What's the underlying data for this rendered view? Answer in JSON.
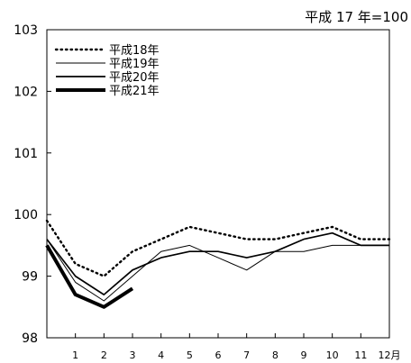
{
  "chart_data": {
    "type": "line",
    "title": "平成 17 年=100",
    "x": [
      0,
      1,
      2,
      3,
      4,
      5,
      6,
      7,
      8,
      9,
      10,
      11,
      12
    ],
    "xticks": [
      {
        "x": 1,
        "label": "1"
      },
      {
        "x": 2,
        "label": "2"
      },
      {
        "x": 3,
        "label": "3"
      },
      {
        "x": 4,
        "label": "4"
      },
      {
        "x": 5,
        "label": "5"
      },
      {
        "x": 6,
        "label": "6"
      },
      {
        "x": 7,
        "label": "7"
      },
      {
        "x": 8,
        "label": "8"
      },
      {
        "x": 9,
        "label": "9"
      },
      {
        "x": 10,
        "label": "10"
      },
      {
        "x": 11,
        "label": "11"
      },
      {
        "x": 12,
        "label": "12月"
      }
    ],
    "xlim": [
      0,
      12
    ],
    "ylim": [
      98,
      103
    ],
    "yticks": [
      {
        "y": 98,
        "label": "98"
      },
      {
        "y": 99,
        "label": "99"
      },
      {
        "y": 100,
        "label": "100"
      },
      {
        "y": 101,
        "label": "101"
      },
      {
        "y": 102,
        "label": "102"
      },
      {
        "y": 103,
        "label": "103"
      }
    ],
    "grid": false,
    "legend_position": "top-left",
    "series": [
      {
        "name": "平成18年",
        "style": "dotted",
        "color": "#000000",
        "points": [
          [
            0,
            99.9
          ],
          [
            1,
            99.2
          ],
          [
            2,
            99.0
          ],
          [
            3,
            99.4
          ],
          [
            4,
            99.6
          ],
          [
            5,
            99.8
          ],
          [
            6,
            99.7
          ],
          [
            7,
            99.6
          ],
          [
            8,
            99.6
          ],
          [
            9,
            99.7
          ],
          [
            10,
            99.8
          ],
          [
            11,
            99.6
          ],
          [
            12,
            99.6
          ]
        ]
      },
      {
        "name": "平成19年",
        "style": "thin",
        "color": "#000000",
        "points": [
          [
            0,
            99.6
          ],
          [
            1,
            98.9
          ],
          [
            2,
            98.6
          ],
          [
            3,
            99.0
          ],
          [
            4,
            99.4
          ],
          [
            5,
            99.5
          ],
          [
            6,
            99.3
          ],
          [
            7,
            99.1
          ],
          [
            8,
            99.4
          ],
          [
            9,
            99.4
          ],
          [
            10,
            99.5
          ],
          [
            11,
            99.5
          ],
          [
            12,
            99.5
          ]
        ]
      },
      {
        "name": "平成20年",
        "style": "medium",
        "color": "#000000",
        "points": [
          [
            0,
            99.6
          ],
          [
            1,
            99.0
          ],
          [
            2,
            98.7
          ],
          [
            3,
            99.1
          ],
          [
            4,
            99.3
          ],
          [
            5,
            99.4
          ],
          [
            6,
            99.4
          ],
          [
            7,
            99.3
          ],
          [
            8,
            99.4
          ],
          [
            9,
            99.6
          ],
          [
            10,
            99.7
          ],
          [
            11,
            99.5
          ],
          [
            12,
            99.5
          ]
        ]
      },
      {
        "name": "平成21年",
        "style": "thick",
        "color": "#000000",
        "points": [
          [
            0,
            99.5
          ],
          [
            1,
            98.7
          ],
          [
            2,
            98.5
          ],
          [
            3,
            98.8
          ]
        ]
      }
    ]
  }
}
